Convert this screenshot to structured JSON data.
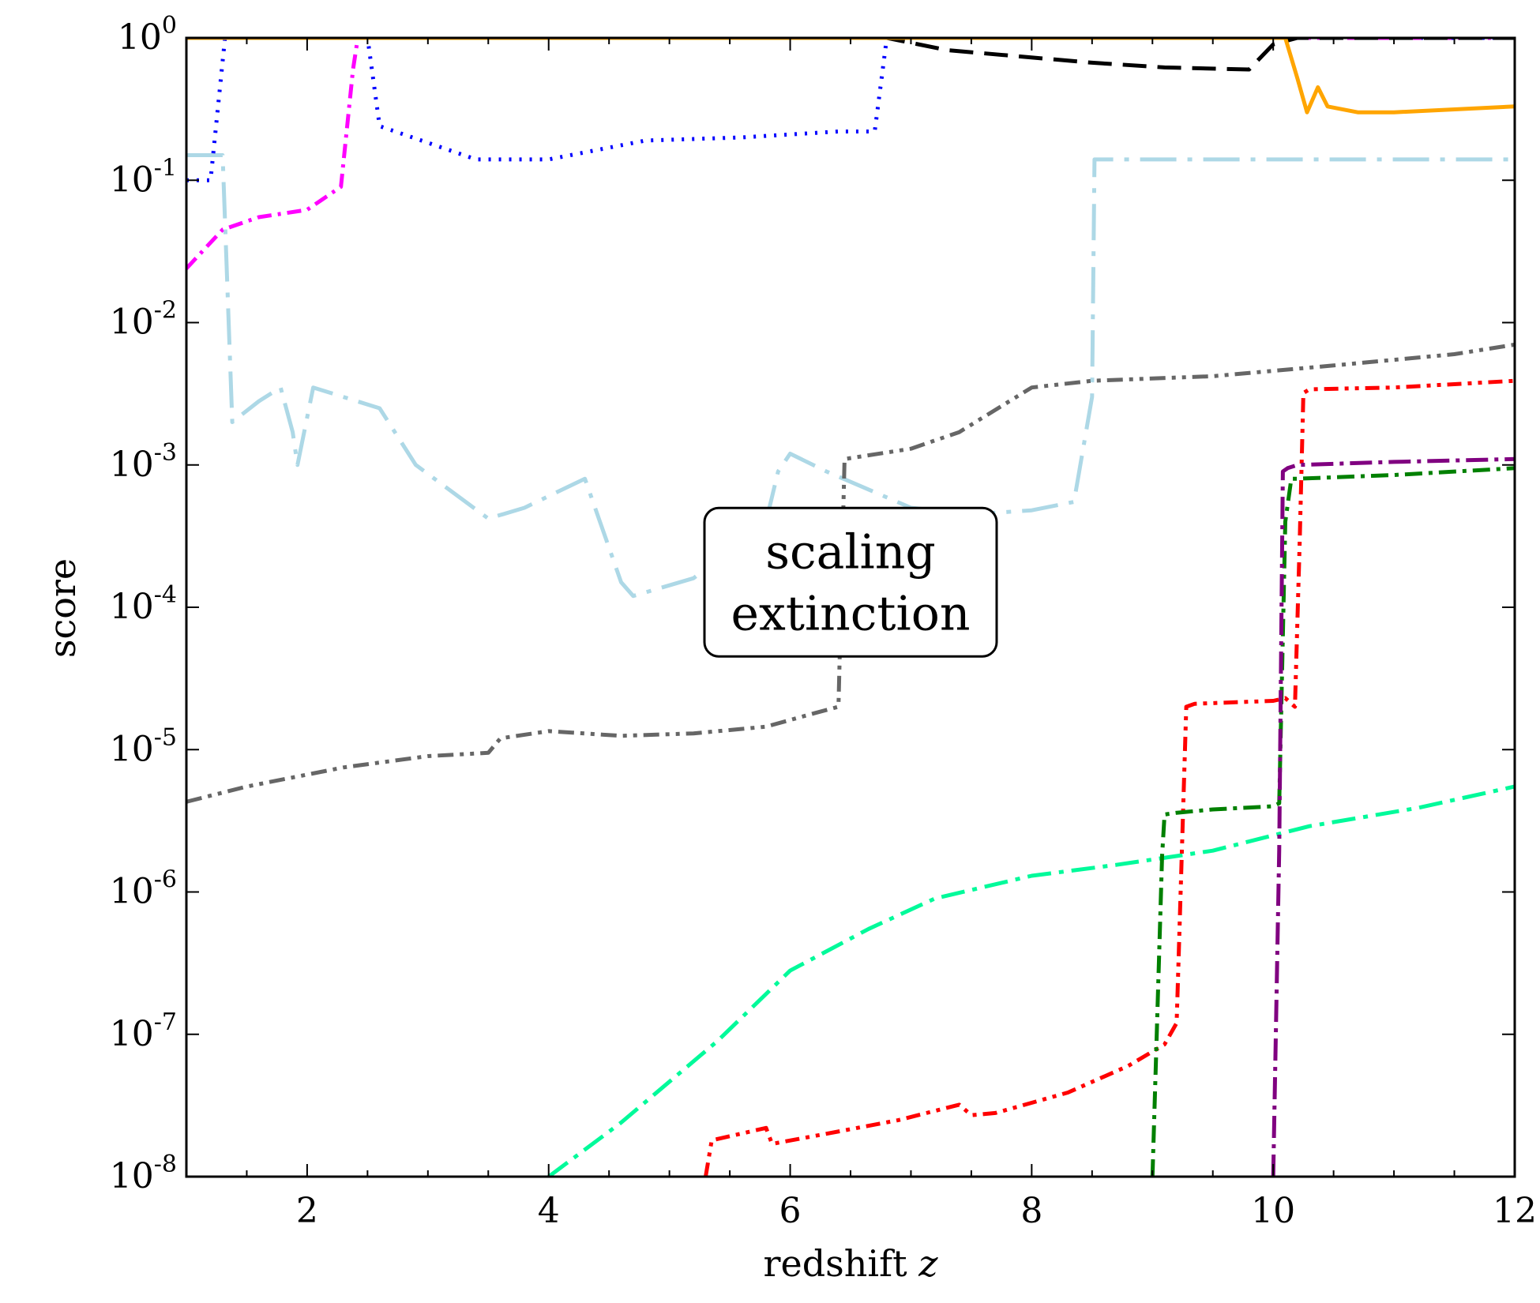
{
  "chart_data": {
    "type": "line",
    "xlabel": "redshift",
    "xlabel_symbol": "z",
    "ylabel": "score",
    "xlim": [
      1,
      12
    ],
    "ylim_log10": [
      -8,
      0
    ],
    "yscale": "log",
    "grid": false,
    "legend": "none",
    "x_ticks": [
      2,
      4,
      6,
      8,
      10,
      12
    ],
    "x_tick_labels": [
      "2",
      "4",
      "6",
      "8",
      "10",
      "12"
    ],
    "y_ticks": [
      {
        "base": "10",
        "exp": "0",
        "log10": 0
      },
      {
        "base": "10",
        "exp": "-1",
        "log10": -1
      },
      {
        "base": "10",
        "exp": "-2",
        "log10": -2
      },
      {
        "base": "10",
        "exp": "-3",
        "log10": -3
      },
      {
        "base": "10",
        "exp": "-4",
        "log10": -4
      },
      {
        "base": "10",
        "exp": "-5",
        "log10": -5
      },
      {
        "base": "10",
        "exp": "-6",
        "log10": -6
      },
      {
        "base": "10",
        "exp": "-7",
        "log10": -7
      },
      {
        "base": "10",
        "exp": "-8",
        "log10": -8
      }
    ],
    "annotation": {
      "lines": [
        "scaling",
        "extinction"
      ],
      "x": 6.5,
      "y": 0.00015
    },
    "series": [
      {
        "color": "#add8e6",
        "dash": "46 14 6 14",
        "x": [
          1,
          1.3,
          1.38,
          1.6,
          1.78,
          1.88,
          1.92,
          2.05,
          2.6,
          2.9,
          3.5,
          3.8,
          4.3,
          4.6,
          4.7,
          5.2,
          5.8,
          5.9,
          6.0,
          6.3,
          6.6,
          7.0,
          7.5,
          8.0,
          8.35,
          8.5,
          8.52,
          9.0,
          10.0,
          11.0,
          12.0
        ],
        "y": [
          0.15,
          0.15,
          0.002,
          0.0028,
          0.0035,
          0.0017,
          0.001,
          0.0035,
          0.0025,
          0.001,
          0.00042,
          0.0005,
          0.0008,
          0.00015,
          0.00012,
          0.00016,
          0.0004,
          0.0009,
          0.0012,
          0.0009,
          0.0007,
          0.0005,
          0.00045,
          0.00048,
          0.00055,
          0.003,
          0.14,
          0.14,
          0.14,
          0.14,
          0.14
        ]
      },
      {
        "color": "#666666",
        "dash": "20 8 5 8 5 8",
        "x": [
          1,
          1.5,
          2.3,
          3.0,
          3.5,
          3.6,
          4.0,
          4.6,
          5.2,
          5.8,
          6.2,
          6.4,
          6.45,
          7.0,
          7.4,
          8.0,
          8.5,
          9.5,
          10.5,
          11.5,
          12.0
        ],
        "y": [
          4.3e-06,
          5.5e-06,
          7.5e-06,
          9e-06,
          9.5e-06,
          1.2e-05,
          1.35e-05,
          1.25e-05,
          1.3e-05,
          1.45e-05,
          1.8e-05,
          2e-05,
          0.0011,
          0.0013,
          0.0017,
          0.0035,
          0.0039,
          0.0042,
          0.005,
          0.006,
          0.007
        ]
      },
      {
        "color": "#0000ff",
        "dash": "3 10",
        "x": [
          1,
          1.2,
          1.32,
          2.5,
          2.6,
          3.4,
          4.0,
          4.8,
          5.6,
          6.4,
          6.7,
          6.8,
          7.2,
          12.0
        ],
        "y": [
          0.1,
          0.1,
          1,
          1,
          0.24,
          0.14,
          0.14,
          0.19,
          0.2,
          0.22,
          0.22,
          1,
          1,
          1
        ]
      },
      {
        "color": "#ff00ff",
        "dash": "18 8 4 8",
        "x": [
          1,
          1.3,
          1.6,
          2.0,
          2.28,
          2.38,
          2.42,
          4.0,
          8.0,
          12.0
        ],
        "y": [
          0.024,
          0.045,
          0.055,
          0.062,
          0.09,
          0.6,
          1,
          1,
          1,
          1
        ]
      },
      {
        "color": "#000000",
        "dash": "30 14",
        "x": [
          1,
          6.8,
          7.3,
          8.5,
          9.1,
          9.8,
          10.0,
          10.2,
          12.0
        ],
        "y": [
          1,
          1,
          0.82,
          0.67,
          0.62,
          0.6,
          0.9,
          1,
          1
        ]
      },
      {
        "color": "#ffa500",
        "dash": "",
        "x": [
          1,
          10.0,
          10.1,
          10.2,
          10.28,
          10.37,
          10.45,
          10.7,
          11.0,
          12.0
        ],
        "y": [
          1,
          1,
          1,
          0.52,
          0.3,
          0.45,
          0.33,
          0.3,
          0.3,
          0.33
        ]
      },
      {
        "color": "#00fa9a",
        "dash": "30 10 6 10",
        "x": [
          4.0,
          4.6,
          5.4,
          6.0,
          6.65,
          7.2,
          8.0,
          8.7,
          9.5,
          10.3,
          11.2,
          12.0
        ],
        "y": [
          1e-08,
          2.4e-08,
          9e-08,
          2.8e-07,
          5.5e-07,
          9e-07,
          1.3e-06,
          1.55e-06,
          1.95e-06,
          2.9e-06,
          3.9e-06,
          5.5e-06
        ]
      },
      {
        "color": "#ff0000",
        "dash": "18 8 5 8 5 8",
        "x": [
          5.3,
          5.35,
          5.8,
          5.85,
          6.3,
          6.9,
          7.4,
          7.5,
          7.7,
          8.3,
          8.8,
          9.1,
          9.2,
          9.28,
          9.35,
          10.0,
          10.1,
          10.18,
          10.22,
          10.25,
          10.3,
          11.0,
          12.0
        ],
        "y": [
          1e-08,
          1.8e-08,
          2.2e-08,
          1.7e-08,
          2e-08,
          2.5e-08,
          3.2e-08,
          2.7e-08,
          2.8e-08,
          3.9e-08,
          6e-08,
          8.5e-08,
          1.2e-07,
          2e-05,
          2.1e-05,
          2.2e-05,
          2.3e-05,
          2e-05,
          0.0003,
          0.0032,
          0.0034,
          0.0035,
          0.0039
        ]
      },
      {
        "color": "#008000",
        "dash": "22 8 5 8",
        "x": [
          9.0,
          9.08,
          9.1,
          9.2,
          9.5,
          10.0,
          10.05,
          10.1,
          10.15,
          10.2,
          11.0,
          12.0
        ],
        "y": [
          1e-08,
          1.8e-06,
          3.5e-06,
          3.6e-06,
          3.8e-06,
          4e-06,
          4.2e-06,
          0.0004,
          0.0008,
          0.0008,
          0.00085,
          0.00095
        ]
      },
      {
        "color": "#800080",
        "dash": "28 8 5 8",
        "x": [
          10.0,
          10.05,
          10.08,
          10.12,
          10.2,
          11.0,
          12.0
        ],
        "y": [
          1e-08,
          2e-06,
          0.0009,
          0.00095,
          0.001,
          0.00105,
          0.0011
        ]
      }
    ]
  }
}
